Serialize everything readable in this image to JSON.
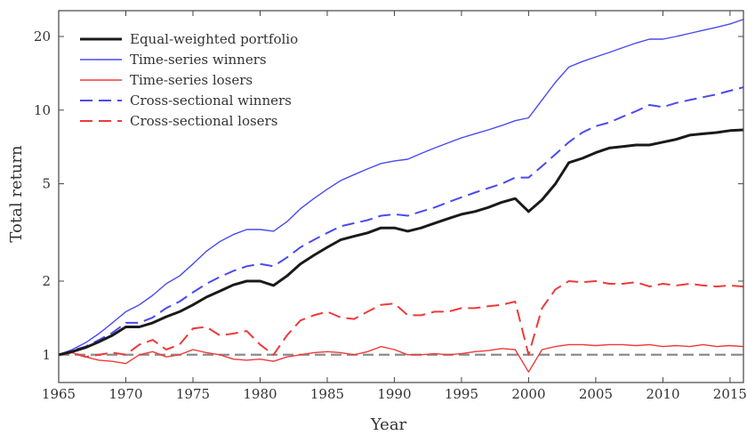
{
  "chart_data": {
    "type": "line",
    "xlabel": "Year",
    "ylabel": "Total return",
    "xlim": [
      1965,
      2016
    ],
    "ylim": [
      0.77,
      25.5
    ],
    "yscale": "log",
    "x_ticks": [
      1965,
      1970,
      1975,
      1980,
      1985,
      1990,
      1995,
      2000,
      2005,
      2010,
      2015
    ],
    "x_tick_labels": [
      "1965",
      "1970",
      "1975",
      "1980",
      "1985",
      "1990",
      "1995",
      "2000",
      "2005",
      "2010",
      "2015"
    ],
    "y_ticks": [
      1,
      2,
      5,
      10,
      20
    ],
    "y_tick_labels": [
      "1",
      "2",
      "5",
      "10",
      "20"
    ],
    "grid": false,
    "legend_position": "top-left",
    "reference_line": {
      "y": 1,
      "color": "#8c8c8c",
      "dash": "dashed"
    },
    "series": [
      {
        "name": "Equal-weighted portfolio",
        "color": "#1a1a1a",
        "dash": "solid",
        "width": "thick",
        "x": [
          1965,
          1966,
          1967,
          1968,
          1969,
          1970,
          1971,
          1972,
          1973,
          1974,
          1975,
          1976,
          1977,
          1978,
          1979,
          1980,
          1981,
          1982,
          1983,
          1984,
          1985,
          1986,
          1987,
          1988,
          1989,
          1990,
          1991,
          1992,
          1993,
          1994,
          1995,
          1996,
          1997,
          1998,
          1999,
          2000,
          2001,
          2002,
          2003,
          2004,
          2005,
          2006,
          2007,
          2008,
          2009,
          2010,
          2011,
          2012,
          2013,
          2014,
          2015,
          2016
        ],
        "y": [
          1.0,
          1.03,
          1.07,
          1.13,
          1.2,
          1.3,
          1.3,
          1.35,
          1.43,
          1.5,
          1.6,
          1.72,
          1.82,
          1.93,
          2.0,
          2.0,
          1.92,
          2.1,
          2.35,
          2.55,
          2.75,
          2.95,
          3.05,
          3.15,
          3.3,
          3.3,
          3.2,
          3.3,
          3.45,
          3.6,
          3.75,
          3.85,
          4.0,
          4.2,
          4.35,
          3.85,
          4.3,
          5.0,
          6.1,
          6.35,
          6.7,
          7.0,
          7.1,
          7.2,
          7.2,
          7.4,
          7.6,
          7.9,
          8.0,
          8.1,
          8.25,
          8.3
        ]
      },
      {
        "name": "Time-series winners",
        "color": "#4a4af0",
        "dash": "solid",
        "width": "thin",
        "x": [
          1965,
          1966,
          1967,
          1968,
          1969,
          1970,
          1971,
          1972,
          1973,
          1974,
          1975,
          1976,
          1977,
          1978,
          1979,
          1980,
          1981,
          1982,
          1983,
          1984,
          1985,
          1986,
          1987,
          1988,
          1989,
          1990,
          1991,
          1992,
          1993,
          1994,
          1995,
          1996,
          1997,
          1998,
          1999,
          2000,
          2001,
          2002,
          2003,
          2004,
          2005,
          2006,
          2007,
          2008,
          2009,
          2010,
          2011,
          2012,
          2013,
          2014,
          2015,
          2016
        ],
        "y": [
          1.0,
          1.05,
          1.12,
          1.22,
          1.35,
          1.5,
          1.6,
          1.75,
          1.95,
          2.1,
          2.35,
          2.65,
          2.9,
          3.1,
          3.25,
          3.25,
          3.2,
          3.5,
          3.95,
          4.35,
          4.75,
          5.15,
          5.45,
          5.75,
          6.05,
          6.2,
          6.3,
          6.65,
          7.0,
          7.35,
          7.7,
          8.0,
          8.3,
          8.65,
          9.05,
          9.3,
          11.0,
          13.0,
          15.0,
          15.8,
          16.5,
          17.2,
          18.0,
          18.8,
          19.5,
          19.5,
          20.0,
          20.6,
          21.2,
          21.8,
          22.5,
          23.5
        ]
      },
      {
        "name": "Time-series losers",
        "color": "#ee3a3a",
        "dash": "solid",
        "width": "thin",
        "x": [
          1965,
          1966,
          1967,
          1968,
          1969,
          1970,
          1971,
          1972,
          1973,
          1974,
          1975,
          1976,
          1977,
          1978,
          1979,
          1980,
          1981,
          1982,
          1983,
          1984,
          1985,
          1986,
          1987,
          1988,
          1989,
          1990,
          1991,
          1992,
          1993,
          1994,
          1995,
          1996,
          1997,
          1998,
          1999,
          2000,
          2001,
          2002,
          2003,
          2004,
          2005,
          2006,
          2007,
          2008,
          2009,
          2010,
          2011,
          2012,
          2013,
          2014,
          2015,
          2016
        ],
        "y": [
          1.0,
          1.02,
          0.98,
          0.95,
          0.94,
          0.92,
          1.0,
          1.03,
          0.98,
          1.0,
          1.05,
          1.02,
          1.0,
          0.96,
          0.95,
          0.96,
          0.94,
          0.98,
          1.0,
          1.02,
          1.03,
          1.02,
          1.0,
          1.03,
          1.08,
          1.05,
          1.0,
          1.0,
          1.01,
          1.0,
          1.01,
          1.03,
          1.04,
          1.06,
          1.05,
          0.85,
          1.05,
          1.08,
          1.1,
          1.1,
          1.09,
          1.1,
          1.1,
          1.09,
          1.1,
          1.08,
          1.09,
          1.08,
          1.1,
          1.08,
          1.09,
          1.08
        ]
      },
      {
        "name": "Cross-sectional winners",
        "color": "#4a4af0",
        "dash": "dashed",
        "width": "medium",
        "x": [
          1965,
          1966,
          1967,
          1968,
          1969,
          1970,
          1971,
          1972,
          1973,
          1974,
          1975,
          1976,
          1977,
          1978,
          1979,
          1980,
          1981,
          1982,
          1983,
          1984,
          1985,
          1986,
          1987,
          1988,
          1989,
          1990,
          1991,
          1992,
          1993,
          1994,
          1995,
          1996,
          1997,
          1998,
          1999,
          2000,
          2001,
          2002,
          2003,
          2004,
          2005,
          2006,
          2007,
          2008,
          2009,
          2010,
          2011,
          2012,
          2013,
          2014,
          2015,
          2016
        ],
        "y": [
          1.0,
          1.04,
          1.08,
          1.15,
          1.23,
          1.35,
          1.35,
          1.42,
          1.55,
          1.65,
          1.8,
          1.95,
          2.08,
          2.2,
          2.3,
          2.35,
          2.3,
          2.5,
          2.75,
          2.95,
          3.15,
          3.35,
          3.45,
          3.55,
          3.7,
          3.75,
          3.7,
          3.85,
          4.0,
          4.2,
          4.4,
          4.6,
          4.8,
          5.0,
          5.3,
          5.3,
          5.9,
          6.6,
          7.4,
          8.1,
          8.6,
          8.9,
          9.4,
          9.9,
          10.5,
          10.3,
          10.7,
          11.0,
          11.3,
          11.6,
          12.0,
          12.4
        ]
      },
      {
        "name": "Cross-sectional losers",
        "color": "#ee3a3a",
        "dash": "dashed",
        "width": "medium",
        "x": [
          1965,
          1966,
          1967,
          1968,
          1969,
          1970,
          1971,
          1972,
          1973,
          1974,
          1975,
          1976,
          1977,
          1978,
          1979,
          1980,
          1981,
          1982,
          1983,
          1984,
          1985,
          1986,
          1987,
          1988,
          1989,
          1990,
          1991,
          1992,
          1993,
          1994,
          1995,
          1996,
          1997,
          1998,
          1999,
          2000,
          2001,
          2002,
          2003,
          2004,
          2005,
          2006,
          2007,
          2008,
          2009,
          2010,
          2011,
          2012,
          2013,
          2014,
          2015,
          2016
        ],
        "y": [
          1.0,
          1.02,
          0.98,
          1.0,
          1.02,
          1.0,
          1.1,
          1.15,
          1.05,
          1.1,
          1.28,
          1.3,
          1.2,
          1.22,
          1.25,
          1.1,
          1.0,
          1.2,
          1.38,
          1.45,
          1.5,
          1.42,
          1.4,
          1.5,
          1.6,
          1.62,
          1.45,
          1.45,
          1.5,
          1.5,
          1.55,
          1.55,
          1.58,
          1.6,
          1.65,
          1.0,
          1.55,
          1.85,
          2.0,
          1.98,
          2.0,
          1.95,
          1.95,
          1.98,
          1.9,
          1.95,
          1.92,
          1.95,
          1.92,
          1.9,
          1.92,
          1.9
        ]
      }
    ]
  }
}
